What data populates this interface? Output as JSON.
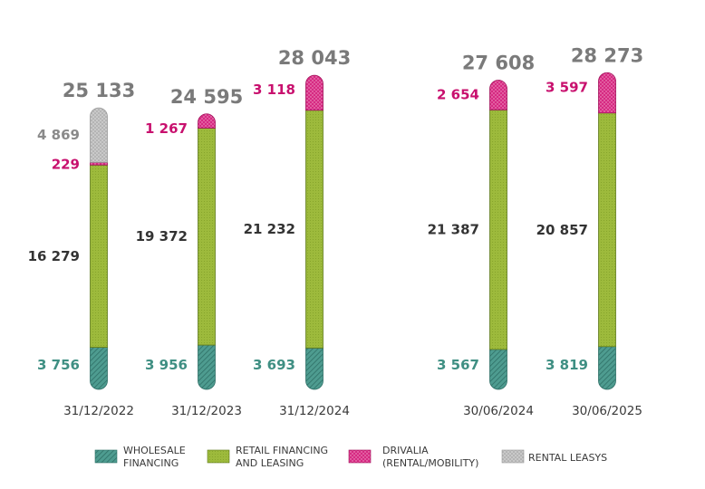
{
  "chart_data": {
    "type": "bar",
    "stacked": true,
    "categories": [
      "31/12/2022",
      "31/12/2023",
      "31/12/2024",
      "30/06/2024",
      "30/06/2025"
    ],
    "totals": [
      "25 133",
      "24 595",
      "28 043",
      "27 608",
      "28 273"
    ],
    "series": [
      {
        "name": "WHOLESALE FINANCING",
        "legend_lines": [
          "WHOLESALE",
          "FINANCING"
        ],
        "color": "#3f8f83",
        "values": [
          3756,
          3956,
          3693,
          3567,
          3819
        ],
        "labels": [
          "3 756",
          "3 956",
          "3 693",
          "3 567",
          "3 819"
        ]
      },
      {
        "name": "RETAIL FINANCING AND LEASING",
        "legend_lines": [
          "RETAIL FINANCING",
          "AND LEASING"
        ],
        "color": "#9ab83a",
        "values": [
          16279,
          19372,
          21232,
          21387,
          20857
        ],
        "labels": [
          "16 279",
          "19 372",
          "21 232",
          "21 387",
          "20 857"
        ]
      },
      {
        "name": "DRIVALIA (RENTAL/MOBILITY)",
        "legend_lines": [
          "DRIVALIA",
          "(RENTAL/MOBILITY)"
        ],
        "color": "#d1247a",
        "values": [
          229,
          1267,
          3118,
          2654,
          3597
        ],
        "labels": [
          "229",
          "1 267",
          "3 118",
          "2 654",
          "3 597"
        ]
      },
      {
        "name": "RENTAL LEASYS",
        "legend_lines": [
          "RENTAL LEASYS"
        ],
        "color": "#b0b0b0",
        "values": [
          4869,
          0,
          0,
          0,
          0
        ],
        "labels": [
          "4 869",
          "",
          "",
          "",
          ""
        ]
      }
    ],
    "title": "",
    "xlabel": "",
    "ylabel": "",
    "legend_position": "bottom"
  },
  "colors": {
    "wholesale_label": "#3f8f83",
    "retail_label": "#333333",
    "drivalia_label": "#c8106e",
    "leasys_label": "#8a8a8a",
    "total_label": "#7a7a7a"
  }
}
